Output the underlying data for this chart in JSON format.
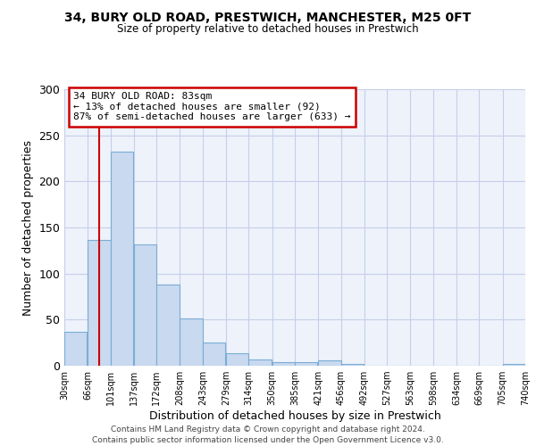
{
  "title1": "34, BURY OLD ROAD, PRESTWICH, MANCHESTER, M25 0FT",
  "title2": "Size of property relative to detached houses in Prestwich",
  "xlabel": "Distribution of detached houses by size in Prestwich",
  "ylabel": "Number of detached properties",
  "bar_left_edges": [
    30,
    66,
    101,
    137,
    172,
    208,
    243,
    279,
    314,
    350,
    385,
    421,
    456,
    492,
    527,
    563,
    598,
    634,
    669,
    705
  ],
  "bar_heights": [
    37,
    136,
    232,
    132,
    88,
    51,
    25,
    14,
    7,
    4,
    4,
    6,
    2,
    0,
    0,
    0,
    0,
    0,
    0,
    2
  ],
  "bin_width": 35,
  "bar_color": "#c9d9ef",
  "bar_edgecolor": "#7aadd4",
  "tick_labels": [
    "30sqm",
    "66sqm",
    "101sqm",
    "137sqm",
    "172sqm",
    "208sqm",
    "243sqm",
    "279sqm",
    "314sqm",
    "350sqm",
    "385sqm",
    "421sqm",
    "456sqm",
    "492sqm",
    "527sqm",
    "563sqm",
    "598sqm",
    "634sqm",
    "669sqm",
    "705sqm",
    "740sqm"
  ],
  "ylim": [
    0,
    300
  ],
  "yticks": [
    0,
    50,
    100,
    150,
    200,
    250,
    300
  ],
  "property_line_x": 83,
  "property_line_color": "#cc0000",
  "annotation_text_line1": "34 BURY OLD ROAD: 83sqm",
  "annotation_text_line2": "← 13% of detached houses are smaller (92)",
  "annotation_text_line3": "87% of semi-detached houses are larger (633) →",
  "annotation_box_edgecolor": "#cc0000",
  "footer_line1": "Contains HM Land Registry data © Crown copyright and database right 2024.",
  "footer_line2": "Contains public sector information licensed under the Open Government Licence v3.0.",
  "bg_color": "#eef2fb",
  "grid_color": "#c5cfe8"
}
